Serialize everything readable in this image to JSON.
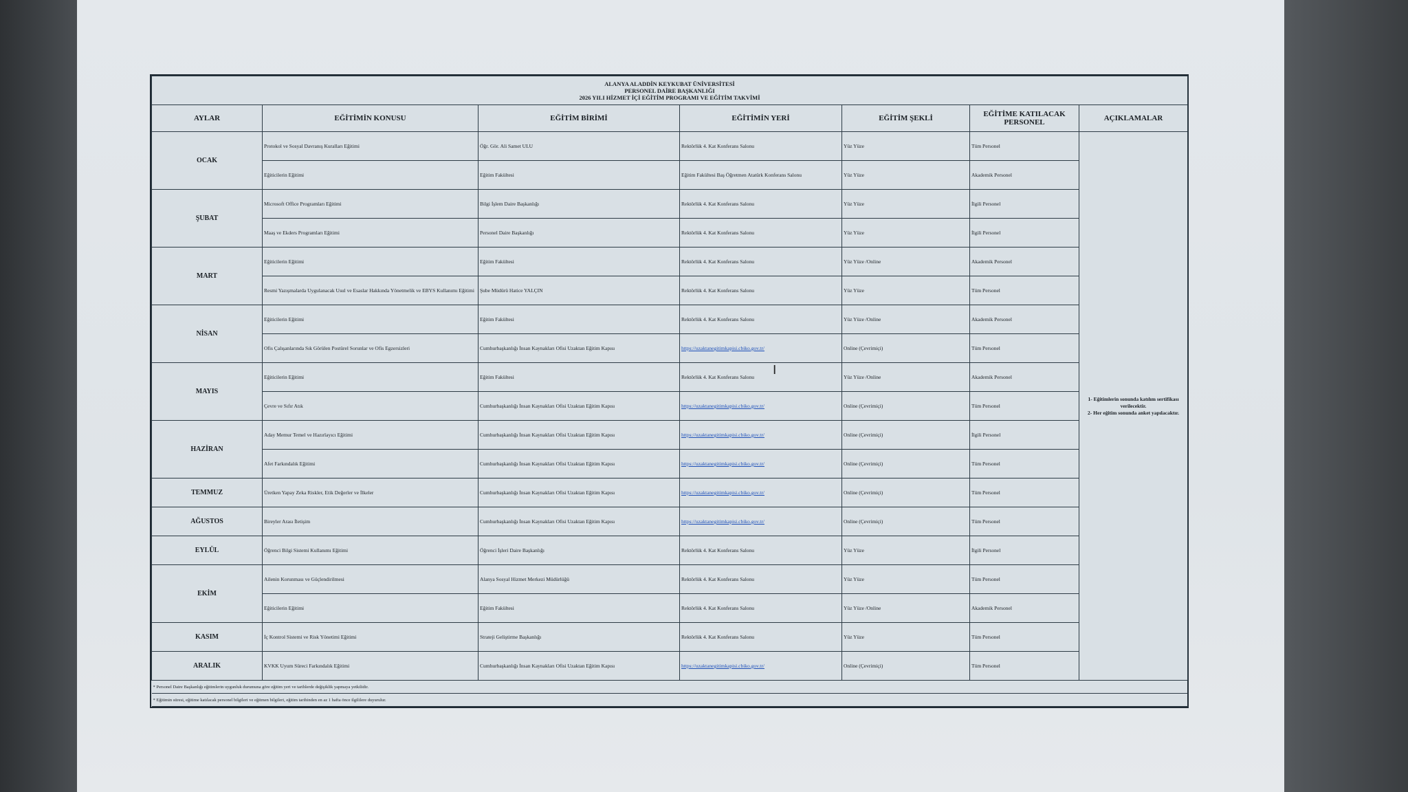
{
  "title": [
    "ALANYA ALADDİN KEYKUBAT ÜNİVERSİTESİ",
    "PERSONEL DAİRE BAŞKANLIĞI",
    "2026 YILI HİZMET İÇİ EĞİTİM PROGRAMI VE EĞİTİM TAKVİMİ"
  ],
  "headers": [
    "AYLAR",
    "EĞİTİMİN KONUSU",
    "EĞİTİM BİRİMİ",
    "EĞİTİMİN YERİ",
    "EĞİTİM ŞEKLİ",
    "EĞİTİME KATILACAK PERSONEL",
    "AÇIKLAMALAR"
  ],
  "link_color": "#1d4fb8",
  "months": [
    {
      "name": "OCAK",
      "rows": [
        [
          "Protokol ve Sosyal Davranış Kuralları Eğitimi",
          "Öğr. Gör. Ali Samet ULU",
          "Rektörlük 4. Kat Konferans Salonu",
          "Yüz Yüze",
          "Tüm Personel"
        ],
        [
          "Eğiticilerin Eğitimi",
          "Eğitim Fakültesi",
          "Eğitim Fakültesi Baş Öğretmen Atatürk Konferans Salonu",
          "Yüz Yüze",
          "Akademik Personel"
        ]
      ]
    },
    {
      "name": "ŞUBAT",
      "rows": [
        [
          "Microsoft Office Programları Eğitimi",
          "Bilgi İşlem Daire Başkanlığı",
          "Rektörlük 4. Kat Konferans Salonu",
          "Yüz Yüze",
          "İlgili Personel"
        ],
        [
          "Maaş ve Ekders Programları Eğitimi",
          "Personel Daire Başkanlığı",
          "Rektörlük 4. Kat Konferans Salonu",
          "Yüz Yüze",
          "İlgili Personel"
        ]
      ]
    },
    {
      "name": "MART",
      "rows": [
        [
          "Eğiticilerin Eğitimi",
          "Eğitim Fakültesi",
          "Rektörlük 4. Kat Konferans Salonu",
          "Yüz Yüze /Online",
          "Akademik Personel"
        ],
        [
          "Resmi Yazışmalarda Uygulanacak Usul ve Esaslar Hakkında Yönetmelik ve EBYS Kullanımı Eğitimi",
          "Şube Müdürü Hatice YALÇIN",
          "Rektörlük 4. Kat Konferans Salonu",
          "Yüz Yüze",
          "Tüm Personel"
        ]
      ]
    },
    {
      "name": "NİSAN",
      "rows": [
        [
          "Eğiticilerin Eğitimi",
          "Eğitim Fakültesi",
          "Rektörlük 4. Kat Konferans Salonu",
          "Yüz Yüze /Online",
          "Akademik Personel"
        ],
        [
          "Ofis Çalışanlarında Sık Görülen Postürel Sorunlar ve Ofis Egzersizleri",
          "Cumhurbaşkanlığı İnsan Kaynakları Ofisi Uzaktan Eğitim Kapısı",
          "https://uzaktanegitimkapisi.cbiko.gov.tr/",
          "Online (Çevrimiçi)",
          "Tüm Personel"
        ]
      ]
    },
    {
      "name": "MAYIS",
      "rows": [
        [
          "Eğiticilerin Eğitimi",
          "Eğitim Fakültesi",
          "Rektörlük 4. Kat Konferans Salonu",
          "Yüz Yüze /Online",
          "Akademik Personel"
        ],
        [
          "Çevre ve Sıfır Atık",
          "Cumhurbaşkanlığı İnsan Kaynakları Ofisi Uzaktan Eğitim Kapısı",
          "https://uzaktanegitimkapisi.cbiko.gov.tr/",
          "Online (Çevrimiçi)",
          "Tüm Personel"
        ]
      ]
    },
    {
      "name": "HAZİRAN",
      "rows": [
        [
          "Aday Memur Temel ve Hazırlayıcı Eğitimi",
          "Cumhurbaşkanlığı İnsan Kaynakları Ofisi Uzaktan Eğitim Kapısı",
          "https://uzaktanegitimkapisi.cbiko.gov.tr/",
          "Online (Çevrimiçi)",
          "İlgili Personel"
        ],
        [
          "Afet Farkındalık Eğitimi",
          "Cumhurbaşkanlığı İnsan Kaynakları Ofisi Uzaktan Eğitim Kapısı",
          "https://uzaktanegitimkapisi.cbiko.gov.tr/",
          "Online (Çevrimiçi)",
          "Tüm Personel"
        ]
      ]
    },
    {
      "name": "TEMMUZ",
      "rows": [
        [
          "Üretken Yapay Zeka Riskler, Etik Değerler ve İlkeler",
          "Cumhurbaşkanlığı İnsan Kaynakları Ofisi Uzaktan Eğitim Kapısı",
          "https://uzaktanegitimkapisi.cbiko.gov.tr/",
          "Online (Çevrimiçi)",
          "Tüm Personel"
        ]
      ]
    },
    {
      "name": "AĞUSTOS",
      "rows": [
        [
          "Bireyler Arası İletişim",
          "Cumhurbaşkanlığı İnsan Kaynakları Ofisi Uzaktan Eğitim Kapısı",
          "https://uzaktanegitimkapisi.cbiko.gov.tr/",
          "Online (Çevrimiçi)",
          "Tüm Personel"
        ]
      ]
    },
    {
      "name": "EYLÜL",
      "rows": [
        [
          "Öğrenci Bilgi Sistemi Kullanımı Eğitimi",
          "Öğrenci İşleri Daire Başkanlığı",
          "Rektörlük 4. Kat Konferans Salonu",
          "Yüz Yüze",
          "İlgili Personel"
        ]
      ]
    },
    {
      "name": "EKİM",
      "rows": [
        [
          "Ailenin Korunması ve Güçlendirilmesi",
          "Alanya Sosyal Hizmet Merkezi Müdürlüğü",
          "Rektörlük 4. Kat Konferans Salonu",
          "Yüz Yüze",
          "Tüm Personel"
        ],
        [
          "Eğiticilerin Eğitimi",
          "Eğitim Fakültesi",
          "Rektörlük 4. Kat Konferans Salonu",
          "Yüz Yüze /Online",
          "Akademik Personel"
        ]
      ]
    },
    {
      "name": "KASIM",
      "rows": [
        [
          "İç Kontrol Sistemi ve Risk Yönetimi Eğitimi",
          "Strateji Geliştirme Başkanlığı",
          "Rektörlük 4. Kat Konferans Salonu",
          "Yüz Yüze",
          "Tüm Personel"
        ]
      ]
    },
    {
      "name": "ARALIK",
      "rows": [
        [
          "KVKK Uyum Süreci Farkındalık Eğitimi",
          "Cumhurbaşkanlığı İnsan Kaynakları Ofisi Uzaktan Eğitim Kapısı",
          "https://uzaktanegitimkapisi.cbiko.gov.tr/",
          "Online (Çevrimiçi)",
          "Tüm Personel"
        ]
      ]
    }
  ],
  "notes": [
    "1- Eğitimlerin sonunda katılım sertifikası verilecektir.",
    "2- Her eğitim sonunda anket yapılacaktır."
  ],
  "footnotes": [
    "* Personel Daire Başkanlığı eğitimlerin uygunluk durumuna göre eğitim yeri ve tarihlerde değişiklik yapmaya yetkilidir.",
    "* Eğitimin süresi, eğitime katılacak personel bilgileri ve eğitmen bilgileri, eğitim tarihinden en az 1 hafta önce ilgililere duyurulur."
  ]
}
